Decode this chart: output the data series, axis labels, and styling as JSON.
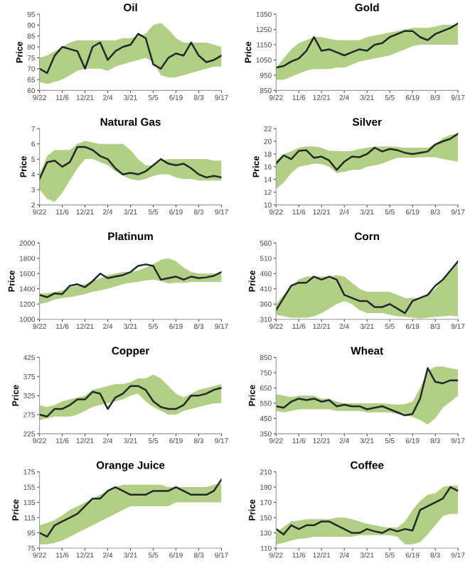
{
  "chart_data": [
    {
      "type": "line",
      "title": "Oil",
      "ylabel": "Price",
      "categories": [
        "9/22",
        null,
        null,
        "11/6",
        null,
        null,
        "12/21",
        null,
        null,
        "2/4",
        null,
        null,
        "3/21",
        null,
        null,
        "5/5",
        null,
        null,
        "6/19",
        null,
        null,
        "8/3",
        null,
        null,
        "9/17"
      ],
      "ylim": [
        60,
        95
      ],
      "yticks": [
        60,
        65,
        70,
        75,
        80,
        85,
        90,
        95
      ],
      "series": [
        {
          "color": "#1f2a2a",
          "values": [
            70,
            68,
            76,
            80,
            79,
            78,
            70,
            80,
            82,
            74,
            78,
            80,
            81,
            86,
            84,
            72,
            70,
            75,
            77,
            76,
            82,
            76,
            73,
            74,
            76
          ],
          "lower": [
            64,
            63,
            64,
            65,
            67,
            69,
            70,
            70,
            70,
            69,
            71,
            72,
            73,
            74,
            75,
            73,
            67,
            66,
            66,
            67,
            68,
            69,
            70,
            71,
            71
          ],
          "upper": [
            75,
            76,
            78,
            80,
            82,
            83,
            83,
            83,
            83,
            83,
            83,
            84,
            84,
            85,
            86,
            90,
            91,
            88,
            84,
            82,
            82,
            82,
            82,
            81,
            80
          ]
        }
      ]
    },
    {
      "type": "line",
      "title": "Gold",
      "ylabel": "Price",
      "categories": [
        "9/22",
        null,
        null,
        "11/6",
        null,
        null,
        "12/21",
        null,
        null,
        "2/4",
        null,
        null,
        "3/21",
        null,
        null,
        "5/5",
        null,
        null,
        "6/19",
        null,
        null,
        "8/3",
        null,
        null,
        "9/17"
      ],
      "ylim": [
        850,
        1350
      ],
      "yticks": [
        850,
        950,
        1050,
        1150,
        1250,
        1350
      ],
      "series": [
        {
          "color": "#1f2a2a",
          "values": [
            1000,
            1010,
            1040,
            1060,
            1110,
            1200,
            1110,
            1120,
            1100,
            1080,
            1100,
            1120,
            1110,
            1150,
            1160,
            1200,
            1220,
            1240,
            1240,
            1200,
            1180,
            1220,
            1240,
            1260,
            1290
          ],
          "lower": [
            920,
            920,
            940,
            960,
            980,
            990,
            990,
            990,
            1000,
            1000,
            1020,
            1040,
            1050,
            1060,
            1070,
            1080,
            1100,
            1120,
            1140,
            1150,
            1150,
            1150,
            1150,
            1150,
            1150
          ],
          "upper": [
            1000,
            1060,
            1120,
            1160,
            1180,
            1200,
            1200,
            1190,
            1180,
            1180,
            1180,
            1180,
            1200,
            1210,
            1220,
            1230,
            1240,
            1250,
            1260,
            1260,
            1260,
            1270,
            1280,
            1280,
            1280
          ]
        }
      ]
    },
    {
      "type": "line",
      "title": "Natural Gas",
      "ylabel": "Price",
      "categories": [
        "9/22",
        null,
        null,
        "11/6",
        null,
        null,
        "12/21",
        null,
        null,
        "2/4",
        null,
        null,
        "3/21",
        null,
        null,
        "5/5",
        null,
        null,
        "6/19",
        null,
        null,
        "8/3",
        null,
        null,
        "9/17"
      ],
      "ylim": [
        2,
        7
      ],
      "yticks": [
        2,
        3,
        4,
        5,
        6,
        7
      ],
      "series": [
        {
          "color": "#1f2a2a",
          "values": [
            3.7,
            4.8,
            4.9,
            4.5,
            4.8,
            5.8,
            5.8,
            5.6,
            5.2,
            5.0,
            4.4,
            4.0,
            4.1,
            4.0,
            4.2,
            4.6,
            5.0,
            4.7,
            4.6,
            4.7,
            4.4,
            4.0,
            3.8,
            3.9,
            3.8
          ],
          "lower": [
            3.0,
            2.4,
            2.2,
            2.8,
            3.6,
            4.4,
            5.0,
            5.0,
            4.8,
            4.6,
            4.2,
            3.9,
            3.7,
            3.6,
            3.7,
            3.9,
            4.0,
            4.0,
            3.8,
            3.7,
            3.7,
            3.6,
            3.6,
            3.6,
            3.6
          ],
          "upper": [
            4.0,
            5.2,
            5.6,
            5.6,
            5.6,
            6.0,
            6.2,
            6.1,
            6.0,
            6.0,
            6.0,
            6.0,
            5.6,
            5.0,
            4.6,
            4.6,
            4.9,
            5.0,
            5.0,
            5.0,
            5.0,
            5.0,
            5.0,
            4.9,
            4.9
          ]
        }
      ]
    },
    {
      "type": "line",
      "title": "Silver",
      "ylabel": "Price",
      "categories": [
        "9/22",
        null,
        null,
        "11/6",
        null,
        null,
        "12/21",
        null,
        null,
        "2/4",
        null,
        null,
        "3/21",
        null,
        null,
        "5/5",
        null,
        null,
        "6/19",
        null,
        null,
        "8/3",
        null,
        null,
        "9/17"
      ],
      "ylim": [
        10,
        22
      ],
      "yticks": [
        10,
        12,
        14,
        16,
        18,
        20,
        22
      ],
      "series": [
        {
          "color": "#1f2a2a",
          "values": [
            16.5,
            17.8,
            17.2,
            18.5,
            18.6,
            17.4,
            17.6,
            17.0,
            15.5,
            16.8,
            17.6,
            17.5,
            18.0,
            19.0,
            18.4,
            18.8,
            18.6,
            18.2,
            18.0,
            18.2,
            18.4,
            19.5,
            20.0,
            20.4,
            21.2
          ],
          "lower": [
            12.5,
            13.5,
            15.0,
            16.0,
            16.2,
            16.5,
            16.4,
            16.0,
            15.0,
            15.2,
            15.5,
            15.5,
            16.0,
            16.2,
            16.5,
            17.0,
            17.4,
            17.4,
            17.4,
            17.5,
            17.5,
            17.5,
            17.2,
            17.0,
            16.8
          ],
          "upper": [
            17.0,
            18.0,
            18.4,
            19.0,
            19.2,
            19.2,
            19.0,
            18.5,
            18.5,
            18.4,
            18.5,
            18.8,
            19.0,
            19.2,
            19.2,
            19.2,
            19.1,
            19.0,
            19.0,
            19.0,
            19.0,
            19.6,
            20.5,
            21.0,
            21.2
          ]
        }
      ]
    },
    {
      "type": "line",
      "title": "Platinum",
      "ylabel": "Price",
      "categories": [
        "9/22",
        null,
        null,
        "11/6",
        null,
        null,
        "12/21",
        null,
        null,
        "2/4",
        null,
        null,
        "3/21",
        null,
        null,
        "5/5",
        null,
        null,
        "6/19",
        null,
        null,
        "8/3",
        null,
        null,
        "9/17"
      ],
      "ylim": [
        1000,
        2000
      ],
      "yticks": [
        1000,
        1200,
        1400,
        1600,
        1800,
        2000
      ],
      "series": [
        {
          "color": "#1f2a2a",
          "values": [
            1320,
            1290,
            1340,
            1330,
            1440,
            1460,
            1420,
            1500,
            1600,
            1540,
            1560,
            1580,
            1620,
            1700,
            1720,
            1700,
            1520,
            1540,
            1560,
            1520,
            1560,
            1540,
            1550,
            1570,
            1620
          ],
          "lower": [
            1200,
            1220,
            1260,
            1280,
            1290,
            1310,
            1330,
            1360,
            1380,
            1400,
            1430,
            1460,
            1480,
            1490,
            1510,
            1520,
            1500,
            1470,
            1480,
            1480,
            1490,
            1490,
            1490,
            1490,
            1490
          ],
          "upper": [
            1340,
            1340,
            1360,
            1380,
            1420,
            1440,
            1460,
            1500,
            1540,
            1580,
            1600,
            1620,
            1620,
            1640,
            1680,
            1720,
            1780,
            1800,
            1760,
            1680,
            1620,
            1600,
            1600,
            1600,
            1600
          ]
        }
      ]
    },
    {
      "type": "line",
      "title": "Corn",
      "ylabel": "Price",
      "categories": [
        "9/22",
        null,
        null,
        "11/6",
        null,
        null,
        "12/21",
        null,
        null,
        "2/4",
        null,
        null,
        "3/21",
        null,
        null,
        "5/5",
        null,
        null,
        "6/19",
        null,
        null,
        "8/3",
        null,
        null,
        "9/17"
      ],
      "ylim": [
        310,
        560
      ],
      "yticks": [
        310,
        360,
        410,
        460,
        510,
        560
      ],
      "series": [
        {
          "color": "#1f2a2a",
          "values": [
            340,
            380,
            420,
            430,
            430,
            450,
            440,
            450,
            440,
            390,
            380,
            370,
            370,
            350,
            350,
            360,
            345,
            330,
            370,
            380,
            390,
            420,
            440,
            470,
            500
          ],
          "lower": [
            325,
            320,
            315,
            315,
            315,
            320,
            330,
            345,
            360,
            370,
            360,
            340,
            330,
            330,
            330,
            325,
            320,
            318,
            315,
            312,
            315,
            318,
            320,
            322,
            320
          ],
          "upper": [
            360,
            390,
            420,
            440,
            450,
            450,
            450,
            450,
            455,
            450,
            430,
            410,
            400,
            400,
            400,
            400,
            390,
            380,
            380,
            380,
            390,
            410,
            440,
            470,
            500
          ]
        }
      ]
    },
    {
      "type": "line",
      "title": "Copper",
      "ylabel": "Price",
      "categories": [
        "9/22",
        null,
        null,
        "11/6",
        null,
        null,
        "12/21",
        null,
        null,
        "2/4",
        null,
        null,
        "3/21",
        null,
        null,
        "5/5",
        null,
        null,
        "6/19",
        null,
        null,
        "8/3",
        null,
        null,
        "9/17"
      ],
      "ylim": [
        225,
        425
      ],
      "yticks": [
        225,
        275,
        325,
        375,
        425
      ],
      "series": [
        {
          "color": "#1f2a2a",
          "values": [
            275,
            270,
            290,
            290,
            300,
            315,
            315,
            335,
            330,
            290,
            320,
            330,
            350,
            350,
            340,
            310,
            295,
            290,
            290,
            300,
            325,
            325,
            330,
            340,
            345
          ],
          "lower": [
            260,
            265,
            270,
            270,
            270,
            275,
            285,
            295,
            300,
            305,
            310,
            315,
            325,
            330,
            310,
            295,
            285,
            275,
            275,
            285,
            290,
            295,
            300,
            305,
            305
          ],
          "upper": [
            300,
            295,
            300,
            310,
            315,
            320,
            325,
            340,
            345,
            350,
            355,
            355,
            360,
            370,
            370,
            380,
            370,
            350,
            330,
            320,
            330,
            340,
            345,
            350,
            355
          ]
        }
      ]
    },
    {
      "type": "line",
      "title": "Wheat",
      "ylabel": "Price",
      "categories": [
        "9/22",
        null,
        null,
        "11/6",
        null,
        null,
        "12/21",
        null,
        null,
        "2/4",
        null,
        null,
        "3/21",
        null,
        null,
        "5/5",
        null,
        null,
        "6/19",
        null,
        null,
        "8/3",
        null,
        null,
        "9/17"
      ],
      "ylim": [
        350,
        850
      ],
      "yticks": [
        350,
        450,
        550,
        650,
        750,
        850
      ],
      "series": [
        {
          "color": "#1f2a2a",
          "values": [
            530,
            520,
            560,
            580,
            570,
            580,
            560,
            570,
            530,
            540,
            530,
            530,
            510,
            520,
            530,
            510,
            490,
            470,
            480,
            580,
            780,
            690,
            680,
            700,
            700
          ],
          "lower": [
            500,
            490,
            500,
            510,
            510,
            510,
            510,
            510,
            500,
            500,
            500,
            500,
            490,
            490,
            490,
            490,
            480,
            470,
            460,
            440,
            410,
            450,
            520,
            560,
            600
          ],
          "upper": [
            610,
            600,
            590,
            600,
            600,
            600,
            580,
            580,
            560,
            550,
            550,
            550,
            550,
            550,
            550,
            545,
            540,
            545,
            560,
            650,
            760,
            790,
            790,
            780,
            770
          ]
        }
      ]
    },
    {
      "type": "line",
      "title": "Orange Juice",
      "ylabel": "Price",
      "categories": [
        "9/22",
        null,
        null,
        "11/6",
        null,
        null,
        "12/21",
        null,
        null,
        "2/4",
        null,
        null,
        "3/21",
        null,
        null,
        "5/5",
        null,
        null,
        "6/19",
        null,
        null,
        "8/3",
        null,
        null,
        "9/17"
      ],
      "ylim": [
        75,
        175
      ],
      "yticks": [
        75,
        95,
        115,
        135,
        155,
        175
      ],
      "series": [
        {
          "color": "#1f2a2a",
          "values": [
            95,
            90,
            105,
            110,
            115,
            120,
            130,
            140,
            140,
            150,
            155,
            150,
            145,
            145,
            145,
            150,
            150,
            150,
            155,
            150,
            145,
            145,
            145,
            150,
            165
          ],
          "lower": [
            80,
            80,
            82,
            85,
            90,
            95,
            100,
            105,
            110,
            115,
            120,
            125,
            130,
            130,
            130,
            130,
            130,
            130,
            135,
            135,
            135,
            135,
            135,
            135,
            135
          ],
          "upper": [
            105,
            108,
            112,
            118,
            125,
            130,
            135,
            140,
            145,
            150,
            155,
            158,
            158,
            158,
            158,
            158,
            158,
            155,
            155,
            155,
            155,
            155,
            155,
            158,
            160
          ]
        }
      ]
    },
    {
      "type": "line",
      "title": "Coffee",
      "ylabel": "Price",
      "categories": [
        "9/22",
        null,
        null,
        "11/6",
        null,
        null,
        "12/21",
        null,
        null,
        "2/4",
        null,
        null,
        "3/21",
        null,
        null,
        "5/5",
        null,
        null,
        "6/19",
        null,
        null,
        "8/3",
        null,
        null,
        "9/17"
      ],
      "ylim": [
        110,
        210
      ],
      "yticks": [
        110,
        130,
        150,
        170,
        190,
        210
      ],
      "series": [
        {
          "color": "#1f2a2a",
          "values": [
            135,
            128,
            140,
            135,
            140,
            140,
            145,
            145,
            140,
            135,
            130,
            130,
            135,
            132,
            130,
            135,
            132,
            135,
            133,
            160,
            165,
            170,
            175,
            190,
            185
          ],
          "lower": [
            115,
            117,
            120,
            122,
            123,
            125,
            125,
            125,
            125,
            125,
            125,
            127,
            127,
            127,
            127,
            127,
            125,
            115,
            115,
            118,
            128,
            140,
            152,
            155,
            155
          ],
          "upper": [
            130,
            138,
            145,
            146,
            148,
            148,
            148,
            148,
            150,
            150,
            148,
            145,
            142,
            140,
            138,
            137,
            137,
            145,
            160,
            172,
            180,
            182,
            190,
            192,
            192
          ]
        }
      ]
    }
  ]
}
